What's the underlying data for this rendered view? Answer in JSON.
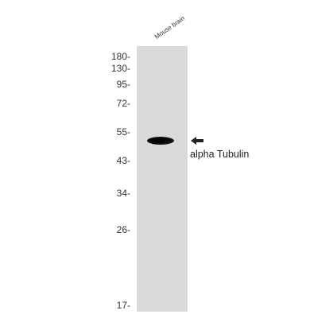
{
  "lane_label": "Mouse brain",
  "markers": [
    "180-",
    "130-",
    "95-",
    "72-",
    "55-",
    "43-",
    "34-",
    "26-",
    "17-"
  ],
  "band_label": "alpha Tubulin",
  "icons": {
    "arrow": "arrow-left-icon"
  }
}
